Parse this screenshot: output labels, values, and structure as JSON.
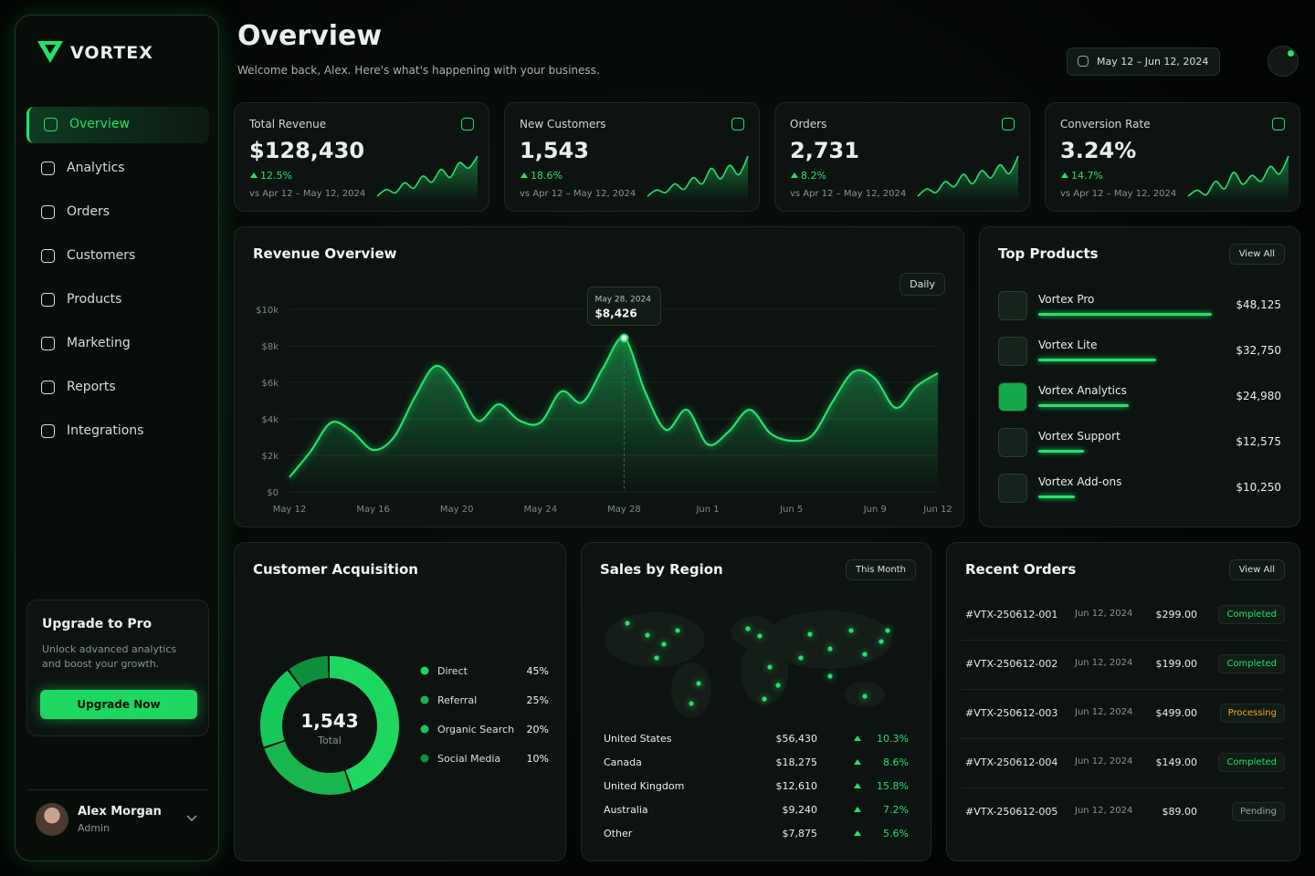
{
  "brand": "VORTEX",
  "nav": [
    "Overview",
    "Analytics",
    "Orders",
    "Customers",
    "Products",
    "Marketing",
    "Reports",
    "Integrations"
  ],
  "upgrade": {
    "title": "Upgrade to Pro",
    "text": "Unlock advanced analytics and boost your growth.",
    "button": "Upgrade Now"
  },
  "user": {
    "name": "Alex Morgan",
    "role": "Admin"
  },
  "header": {
    "title": "Overview",
    "subtitle": "Welcome back, Alex. Here's what's happening with your business.",
    "date_range": "May 12 – Jun 12, 2024"
  },
  "kpis": [
    {
      "label": "Total Revenue",
      "value": "$128,430",
      "change": "12.5%",
      "period": "vs Apr 12 – May 12, 2024",
      "trend": [
        3,
        4,
        3.5,
        5,
        4.2,
        6,
        5.1,
        7,
        5.8,
        8,
        7.2,
        9
      ]
    },
    {
      "label": "New Customers",
      "value": "1,543",
      "change": "18.6%",
      "period": "vs Apr 12 – May 12, 2024",
      "trend": [
        2,
        3,
        2.6,
        4,
        3.1,
        5,
        4,
        6.5,
        4.8,
        7,
        5.5,
        8.5
      ]
    },
    {
      "label": "Orders",
      "value": "2,731",
      "change": "8.2%",
      "period": "vs Apr 12 – May 12, 2024",
      "trend": [
        2.5,
        3.5,
        3,
        4.5,
        3.8,
        5.5,
        4.2,
        6,
        5,
        6.8,
        5.6,
        8
      ]
    },
    {
      "label": "Conversion Rate",
      "value": "3.24%",
      "change": "14.7%",
      "period": "vs Apr 12 – May 12, 2024",
      "trend": [
        3,
        3.8,
        3.2,
        5,
        4,
        6.2,
        4.6,
        5.8,
        5,
        7,
        6,
        8.4
      ]
    }
  ],
  "revenue_chart": {
    "type": "line",
    "title": "Revenue Overview",
    "control": "Daily",
    "color": "#22e36a",
    "ylim": [
      0,
      10000
    ],
    "yticks": [
      {
        "value": 0,
        "label": "$0"
      },
      {
        "value": 2000,
        "label": "$2k"
      },
      {
        "value": 4000,
        "label": "$4k"
      },
      {
        "value": 6000,
        "label": "$6k"
      },
      {
        "value": 8000,
        "label": "$8k"
      },
      {
        "value": 10000,
        "label": "$10k"
      }
    ],
    "grid": true,
    "categories": [
      "May 12",
      null,
      null,
      null,
      "May 16",
      null,
      null,
      null,
      "May 20",
      null,
      null,
      null,
      "May 24",
      null,
      null,
      null,
      "May 28",
      null,
      null,
      null,
      "Jun 1",
      null,
      null,
      null,
      "Jun 5",
      null,
      null,
      null,
      "Jun 9",
      null,
      null,
      "Jun 12"
    ],
    "values": [
      800,
      2200,
      3800,
      3300,
      2300,
      3000,
      5200,
      6900,
      5800,
      3900,
      4800,
      3900,
      3800,
      5500,
      4900,
      6800,
      8426,
      5500,
      3400,
      4500,
      2600,
      3300,
      4500,
      3200,
      2800,
      3100,
      5000,
      6600,
      6200,
      4600,
      5800,
      6500
    ],
    "tooltip": {
      "index": 16,
      "date": "May 28, 2024",
      "label": "$8,426"
    }
  },
  "top_products": {
    "title": "Top Products",
    "action": "View All",
    "color": "#22e36a",
    "items": [
      {
        "name": "Vortex Pro",
        "value": 48125,
        "value_label": "$48,125"
      },
      {
        "name": "Vortex Lite",
        "value": 32750,
        "value_label": "$32,750"
      },
      {
        "name": "Vortex Analytics",
        "value": 24980,
        "value_label": "$24,980"
      },
      {
        "name": "Vortex Support",
        "value": 12575,
        "value_label": "$12,575"
      },
      {
        "name": "Vortex Add-ons",
        "value": 10250,
        "value_label": "$10,250"
      }
    ]
  },
  "acquisition": {
    "type": "donut",
    "title": "Customer Acquisition",
    "total": "1,543",
    "total_label": "Total",
    "categories": [
      "Direct",
      "Referral",
      "Organic Search",
      "Social Media"
    ],
    "values": [
      45,
      25,
      20,
      10
    ],
    "value_labels": [
      "45%",
      "25%",
      "20%",
      "10%"
    ],
    "colors": [
      "#1ed760",
      "#19b54f",
      "#15c85a",
      "#0f8f3c"
    ]
  },
  "regions": {
    "title": "Sales by Region",
    "control": "This Month",
    "rows": [
      {
        "name": "United States",
        "amount": "$56,430",
        "change": "10.3%"
      },
      {
        "name": "Canada",
        "amount": "$18,275",
        "change": "8.6%"
      },
      {
        "name": "United Kingdom",
        "amount": "$12,610",
        "change": "15.8%"
      },
      {
        "name": "Australia",
        "amount": "$9,240",
        "change": "7.2%"
      },
      {
        "name": "Other",
        "amount": "$7,875",
        "change": "5.6%"
      }
    ]
  },
  "orders": {
    "title": "Recent Orders",
    "action": "View All",
    "rows": [
      {
        "id": "#VTX-250612-001",
        "date": "Jun 12, 2024",
        "amount": "$299.00",
        "status": "Completed",
        "status_color": "#22e36a"
      },
      {
        "id": "#VTX-250612-002",
        "date": "Jun 12, 2024",
        "amount": "$199.00",
        "status": "Completed",
        "status_color": "#22e36a"
      },
      {
        "id": "#VTX-250612-003",
        "date": "Jun 12, 2024",
        "amount": "$499.00",
        "status": "Processing",
        "status_color": "#f5a623"
      },
      {
        "id": "#VTX-250612-004",
        "date": "Jun 12, 2024",
        "amount": "$149.00",
        "status": "Completed",
        "status_color": "#22e36a"
      },
      {
        "id": "#VTX-250612-005",
        "date": "Jun 12, 2024",
        "amount": "$89.00",
        "status": "Pending",
        "status_color": "#9aa5a0"
      }
    ]
  }
}
